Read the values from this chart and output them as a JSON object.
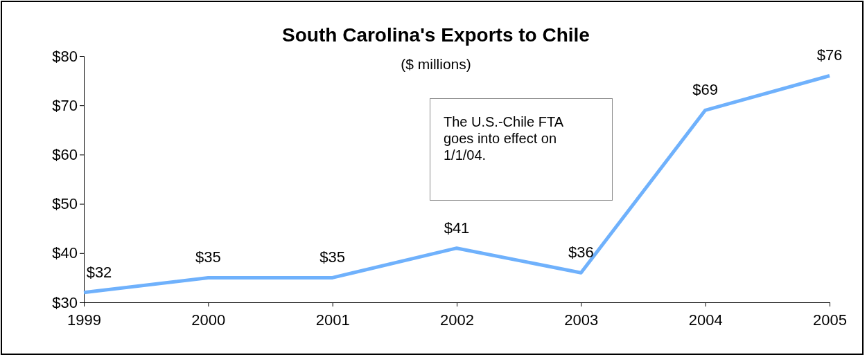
{
  "chart_data": {
    "type": "line",
    "title": "South Carolina's Exports to Chile",
    "subtitle": "($ millions)",
    "categories": [
      "1999",
      "2000",
      "2001",
      "2002",
      "2003",
      "2004",
      "2005"
    ],
    "series": [
      {
        "color": "#6fb1fc",
        "values": [
          32,
          35,
          35,
          41,
          36,
          69,
          76
        ],
        "value_labels": [
          "$32",
          "$35",
          "$35",
          "$41",
          "$36",
          "$69",
          "$76"
        ]
      }
    ],
    "ylim": [
      30,
      80
    ],
    "yticks": [
      {
        "value": 30,
        "label": "$30"
      },
      {
        "value": 40,
        "label": "$40"
      },
      {
        "value": 50,
        "label": "$50"
      },
      {
        "value": 60,
        "label": "$60"
      },
      {
        "value": 70,
        "label": "$70"
      },
      {
        "value": 80,
        "label": "$80"
      }
    ],
    "annotations": [
      "The U.S.-Chile FTA goes into effect on 1/1/04."
    ],
    "grid": false,
    "marker": "none",
    "line_style": "solid"
  }
}
